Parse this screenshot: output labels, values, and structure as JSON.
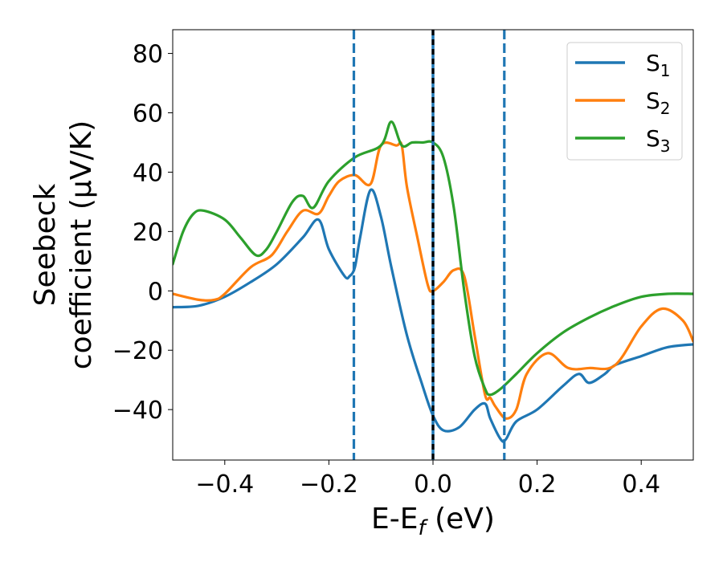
{
  "chart_data": {
    "type": "line",
    "xlabel": {
      "main": "E-E",
      "sub": "f",
      "suffix": " (eV)"
    },
    "ylabel": {
      "line1": "Seebeck",
      "line2": "coefficient  (μV/K)"
    },
    "xlim": [
      -0.5,
      0.5
    ],
    "ylim": [
      -57,
      88
    ],
    "xticks": [
      -0.4,
      -0.2,
      0.0,
      0.2,
      0.4
    ],
    "xtick_labels": [
      "−0.4",
      "−0.2",
      "0.0",
      "0.2",
      "0.4"
    ],
    "yticks": [
      -40,
      -20,
      0,
      20,
      40,
      60,
      80
    ],
    "ytick_labels": [
      "−40",
      "−20",
      "0",
      "20",
      "40",
      "60",
      "80"
    ],
    "grid": false,
    "legend_position": "top-right",
    "vlines": [
      {
        "x": -0.152,
        "style": "dashed",
        "color": "#1f77b4"
      },
      {
        "x": 0.0,
        "style": "solid",
        "color": "#1f77b4"
      },
      {
        "x": 0.0,
        "style": "dashed",
        "color": "#000000"
      },
      {
        "x": 0.137,
        "style": "dashed",
        "color": "#1f77b4"
      }
    ],
    "series": [
      {
        "name": "S",
        "sub": "1",
        "color": "#1f77b4",
        "x": [
          -0.5,
          -0.45,
          -0.4,
          -0.35,
          -0.3,
          -0.25,
          -0.22,
          -0.2,
          -0.17,
          -0.16,
          -0.15,
          -0.14,
          -0.12,
          -0.1,
          -0.08,
          -0.05,
          -0.02,
          0.0,
          0.02,
          0.05,
          0.08,
          0.1,
          0.11,
          0.13,
          0.14,
          0.16,
          0.2,
          0.25,
          0.28,
          0.3,
          0.33,
          0.35,
          0.4,
          0.45,
          0.5
        ],
        "y": [
          -5.5,
          -5,
          -2,
          3,
          9,
          18,
          24,
          14,
          5,
          5,
          8,
          18,
          34,
          25,
          8,
          -15,
          -32,
          -42,
          -47,
          -46,
          -40,
          -38,
          -43,
          -50,
          -50,
          -44,
          -40,
          -32,
          -28,
          -31,
          -28,
          -25,
          -22,
          -19,
          -18
        ]
      },
      {
        "name": "S",
        "sub": "2",
        "color": "#ff7f0e",
        "x": [
          -0.5,
          -0.45,
          -0.42,
          -0.4,
          -0.35,
          -0.31,
          -0.28,
          -0.25,
          -0.22,
          -0.2,
          -0.18,
          -0.15,
          -0.12,
          -0.1,
          -0.07,
          -0.06,
          -0.05,
          -0.03,
          -0.01,
          0.0,
          0.02,
          0.04,
          0.06,
          0.08,
          0.1,
          0.11,
          0.12,
          0.14,
          0.16,
          0.18,
          0.22,
          0.26,
          0.3,
          0.35,
          0.4,
          0.44,
          0.48,
          0.5
        ],
        "y": [
          -1,
          -3,
          -3,
          -1,
          8,
          12,
          20,
          27,
          26,
          32,
          37,
          39,
          36,
          49,
          49,
          49,
          35,
          18,
          2,
          0,
          3,
          7,
          5,
          -15,
          -35,
          -36,
          -39,
          -43,
          -40,
          -28,
          -21,
          -26,
          -26,
          -25,
          -12,
          -6,
          -10,
          -17
        ]
      },
      {
        "name": "S",
        "sub": "3",
        "color": "#2ca02c",
        "x": [
          -0.5,
          -0.48,
          -0.46,
          -0.44,
          -0.4,
          -0.37,
          -0.34,
          -0.32,
          -0.3,
          -0.27,
          -0.25,
          -0.23,
          -0.2,
          -0.15,
          -0.1,
          -0.08,
          -0.06,
          -0.04,
          -0.02,
          0.0,
          0.02,
          0.04,
          0.06,
          0.08,
          0.1,
          0.11,
          0.13,
          0.16,
          0.2,
          0.25,
          0.3,
          0.35,
          0.4,
          0.45,
          0.5
        ],
        "y": [
          9,
          20,
          26,
          27,
          24,
          18,
          12,
          14,
          20,
          30,
          32,
          28,
          37,
          45,
          49,
          57,
          49,
          50,
          50,
          50,
          45,
          28,
          0,
          -22,
          -33,
          -35,
          -33,
          -28,
          -21,
          -14,
          -9,
          -5,
          -2,
          -1,
          -1
        ]
      }
    ]
  }
}
